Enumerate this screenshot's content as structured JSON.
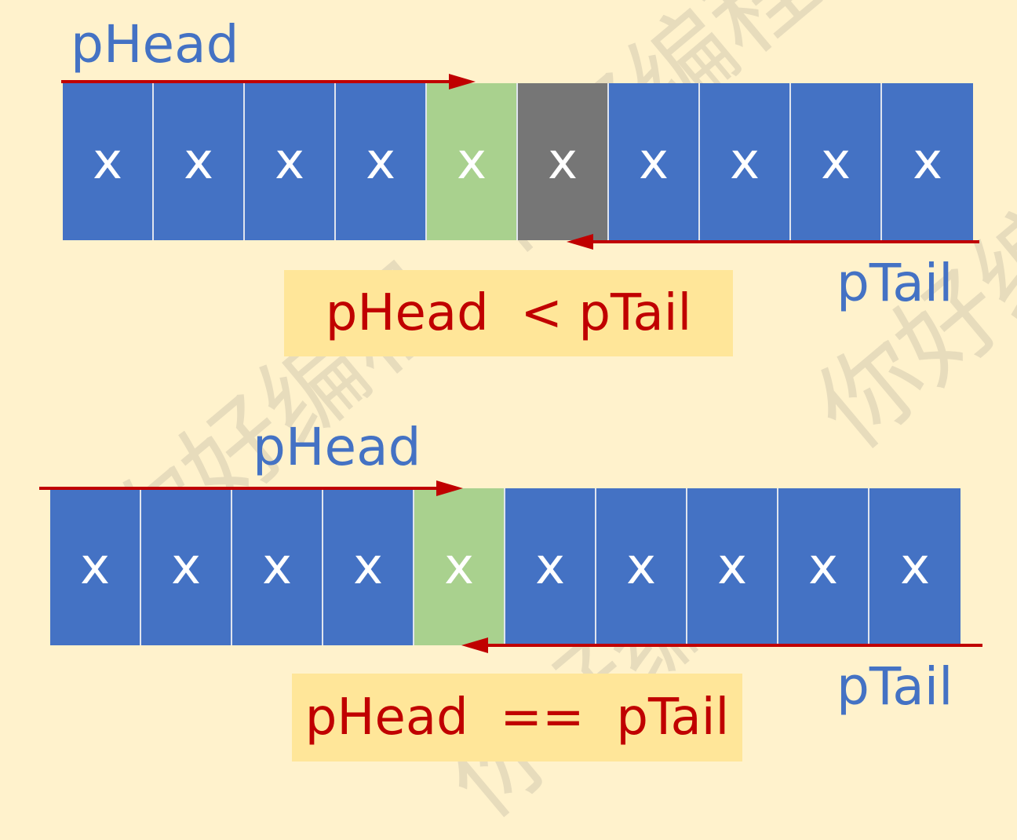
{
  "diagrams": [
    {
      "head_label": "pHead",
      "tail_label": "pTail",
      "cells": [
        {
          "text": "x",
          "state": "blue"
        },
        {
          "text": "x",
          "state": "blue"
        },
        {
          "text": "x",
          "state": "blue"
        },
        {
          "text": "x",
          "state": "blue"
        },
        {
          "text": "x",
          "state": "green"
        },
        {
          "text": "x",
          "state": "gray"
        },
        {
          "text": "x",
          "state": "blue"
        },
        {
          "text": "x",
          "state": "blue"
        },
        {
          "text": "x",
          "state": "blue"
        },
        {
          "text": "x",
          "state": "blue"
        }
      ],
      "condition": "pHead  < pTail"
    },
    {
      "head_label": "pHead",
      "tail_label": "pTail",
      "cells": [
        {
          "text": "x",
          "state": "blue"
        },
        {
          "text": "x",
          "state": "blue"
        },
        {
          "text": "x",
          "state": "blue"
        },
        {
          "text": "x",
          "state": "blue"
        },
        {
          "text": "x",
          "state": "green"
        },
        {
          "text": "x",
          "state": "blue"
        },
        {
          "text": "x",
          "state": "blue"
        },
        {
          "text": "x",
          "state": "blue"
        },
        {
          "text": "x",
          "state": "blue"
        },
        {
          "text": "x",
          "state": "blue"
        }
      ],
      "condition": "pHead  ==  pTail"
    }
  ],
  "watermark": "你好编程",
  "colors": {
    "background": "#fff2cc",
    "cell_default": "#4472c4",
    "cell_current": "#a9d18e",
    "cell_passed": "#767676",
    "pointer_arrow": "#c00000",
    "pointer_label": "#4472c4",
    "condition_text": "#c00000",
    "condition_box": "#ffe699"
  }
}
